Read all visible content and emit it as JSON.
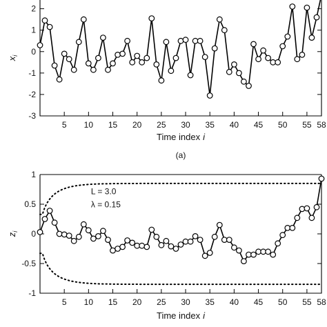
{
  "chart_data": [
    {
      "type": "line",
      "panel_label": "(a)",
      "xlabel": "Time index",
      "xlabel_var": "i",
      "ylabel": "x",
      "ylabel_sub": "i",
      "x_ticks": [
        5,
        10,
        15,
        20,
        25,
        30,
        35,
        40,
        45,
        50,
        55,
        58
      ],
      "y_ticks": [
        -3,
        -2,
        -1,
        0,
        1,
        2
      ],
      "xlim": [
        0,
        58
      ],
      "ylim": [
        -3,
        2.6
      ],
      "series": [
        {
          "x": [
            0,
            1,
            2,
            3,
            4,
            5,
            6,
            7,
            8,
            9,
            10,
            11,
            12,
            13,
            14,
            15,
            16,
            17,
            18,
            19,
            20,
            21,
            22,
            23,
            24,
            25,
            26,
            27,
            28,
            29,
            30,
            31,
            32,
            33,
            34,
            35,
            36,
            37,
            38,
            39,
            40,
            41,
            42,
            43,
            44,
            45,
            46,
            47,
            48,
            49,
            50,
            51,
            52,
            53,
            54,
            55,
            56,
            57,
            58
          ],
          "values": [
            0.3,
            1.45,
            1.15,
            -0.65,
            -1.3,
            -0.1,
            -0.35,
            -0.85,
            0.45,
            1.5,
            -0.55,
            -0.85,
            -0.3,
            0.65,
            -0.85,
            -0.55,
            -0.15,
            -0.1,
            0.5,
            -0.5,
            -0.2,
            -0.5,
            -0.3,
            1.55,
            -0.6,
            -1.35,
            0.45,
            -0.9,
            -0.3,
            0.5,
            0.55,
            -1.1,
            0.5,
            0.5,
            -0.25,
            -2.05,
            0.15,
            1.5,
            1.0,
            -0.95,
            -0.6,
            -1.0,
            -1.4,
            -1.6,
            0.35,
            -0.35,
            0.05,
            -0.3,
            -0.5,
            -0.5,
            0.25,
            0.7,
            2.1,
            -0.35,
            -0.15,
            2.05,
            0.65,
            1.6,
            2.65
          ]
        }
      ]
    },
    {
      "type": "line",
      "panel_label": "",
      "xlabel": "Time index",
      "xlabel_var": "i",
      "ylabel": "z",
      "ylabel_sub": "i",
      "x_ticks": [
        5,
        10,
        15,
        20,
        25,
        30,
        35,
        40,
        45,
        50,
        55,
        58
      ],
      "y_ticks": [
        -1,
        -0.5,
        0,
        0.5,
        1
      ],
      "xlim": [
        0,
        58
      ],
      "ylim": [
        -1,
        1
      ],
      "annotations": [
        "L = 3.0",
        "λ = 0.15"
      ],
      "control_limits": {
        "upper": 0.85,
        "lower": -0.85
      },
      "series": [
        {
          "x": [
            0,
            1,
            2,
            3,
            4,
            5,
            6,
            7,
            8,
            9,
            10,
            11,
            12,
            13,
            14,
            15,
            16,
            17,
            18,
            19,
            20,
            21,
            22,
            23,
            24,
            25,
            26,
            27,
            28,
            29,
            30,
            31,
            32,
            33,
            34,
            35,
            36,
            37,
            38,
            39,
            40,
            41,
            42,
            43,
            44,
            45,
            46,
            47,
            48,
            49,
            50,
            51,
            52,
            53,
            54,
            55,
            56,
            57,
            58
          ],
          "values": [
            0.03,
            0.25,
            0.39,
            0.19,
            0.0,
            -0.01,
            -0.03,
            -0.12,
            -0.05,
            0.16,
            0.06,
            -0.08,
            -0.04,
            0.05,
            -0.1,
            -0.28,
            -0.25,
            -0.22,
            -0.11,
            -0.15,
            -0.2,
            -0.2,
            -0.22,
            0.07,
            -0.05,
            -0.19,
            -0.12,
            -0.21,
            -0.25,
            -0.18,
            -0.13,
            -0.13,
            -0.04,
            -0.1,
            -0.37,
            -0.32,
            -0.05,
            0.15,
            -0.1,
            -0.1,
            -0.23,
            -0.28,
            -0.46,
            -0.35,
            -0.35,
            -0.3,
            -0.3,
            -0.3,
            -0.35,
            -0.16,
            -0.02,
            0.1,
            0.1,
            0.27,
            0.42,
            0.43,
            0.27,
            0.45,
            0.93
          ]
        }
      ]
    }
  ]
}
